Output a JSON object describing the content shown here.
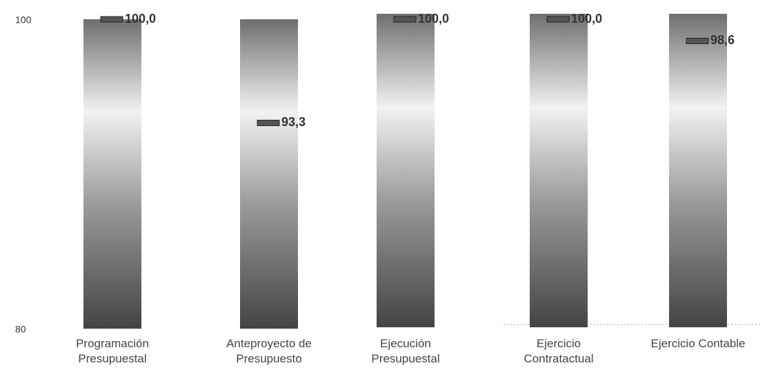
{
  "chart_data": {
    "type": "bar",
    "categories": [
      "Programación Presupuestal",
      "Anteproyecto de Presupuesto",
      "Ejecución Presupuestal",
      "Ejercicio Contratactual",
      "Ejercicio Contable"
    ],
    "values": [
      100.0,
      93.3,
      100.0,
      100.0,
      98.6
    ],
    "value_labels": [
      "100,0",
      "93,3",
      "100,0",
      "100,0",
      "98,6"
    ],
    "ylim": [
      80,
      100
    ],
    "yticks": [
      80,
      100
    ],
    "color": "#555555"
  }
}
